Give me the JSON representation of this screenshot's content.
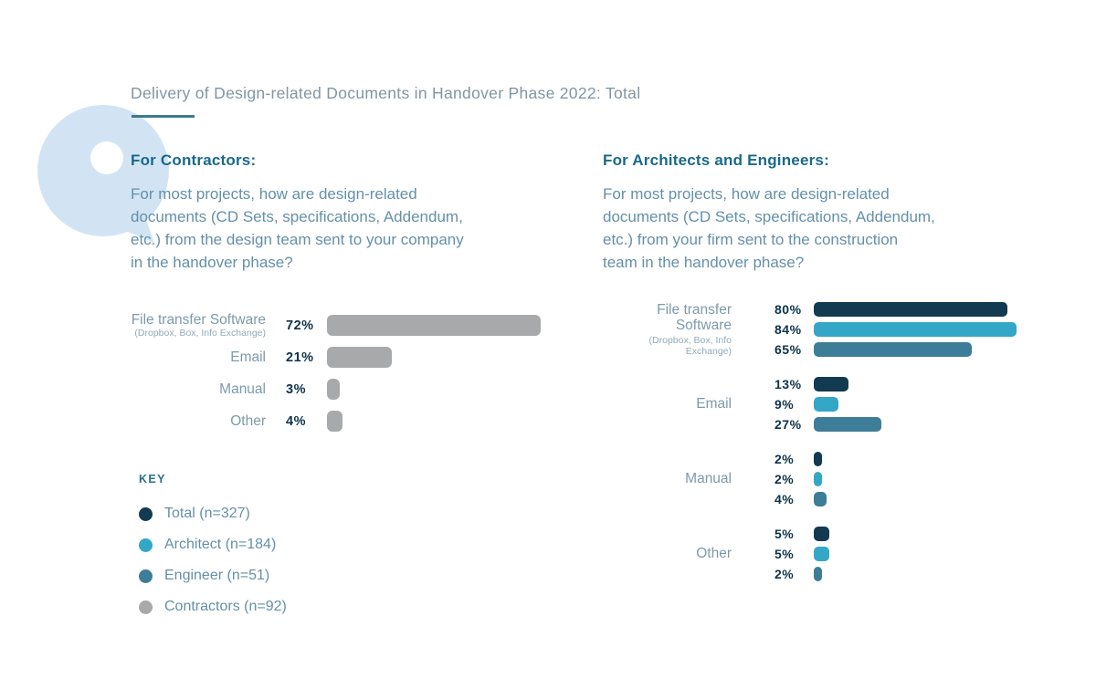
{
  "title": "Delivery of Design-related Documents in Handover Phase 2022: Total",
  "sections": [
    {
      "heading": "For Contractors:",
      "question": "For most projects, how are design-related\ndocuments (CD Sets, specifications, Addendum,\netc.)  from the design team sent to your company\nin the handover phase?"
    },
    {
      "heading": "For Architects and Engineers:",
      "question": "For most projects, how are design-related\ndocuments (CD Sets, specifications, Addendum,\netc.)  from your firm sent to the construction\nteam in the handover phase?"
    }
  ],
  "key": {
    "title": "KEY",
    "items": [
      {
        "label": "Total (n=327)",
        "color": "#123a50"
      },
      {
        "label": "Architect (n=184)",
        "color": "#34a7c6"
      },
      {
        "label": "Engineer (n=51)",
        "color": "#3e7d97"
      },
      {
        "label": "Contractors (n=92)",
        "color": "#a8a9ab"
      }
    ]
  },
  "chart_data": [
    {
      "type": "bar",
      "title": "For Contractors:",
      "orientation": "horizontal",
      "categories": [
        "File transfer Software",
        "Email",
        "Manual",
        "Other"
      ],
      "category_sublabels": [
        "(Dropbox, Box, Info Exchange)",
        "",
        "",
        ""
      ],
      "series": [
        {
          "name": "Contractors (n=92)",
          "color": "#a8a9ab",
          "values": [
            72,
            21,
            3,
            4
          ]
        }
      ],
      "value_format": "percent",
      "xlim": [
        0,
        100
      ],
      "grid": false,
      "legend_position": "bottom-left-key"
    },
    {
      "type": "bar",
      "title": "For Architects and Engineers:",
      "orientation": "horizontal",
      "categories": [
        "File transfer Software",
        "Email",
        "Manual",
        "Other"
      ],
      "category_sublabels": [
        "(Dropbox, Box, Info Exchange)",
        "",
        "",
        ""
      ],
      "series": [
        {
          "name": "Total (n=327)",
          "color": "#123a50",
          "values": [
            80,
            13,
            2,
            5
          ]
        },
        {
          "name": "Architect (n=184)",
          "color": "#34a7c6",
          "values": [
            84,
            9,
            2,
            5
          ]
        },
        {
          "name": "Engineer (n=51)",
          "color": "#3e7d97",
          "values": [
            65,
            27,
            4,
            2
          ]
        }
      ],
      "value_format": "percent",
      "xlim": [
        0,
        100
      ],
      "grid": false,
      "legend_position": "bottom-left-key"
    }
  ],
  "colors": {
    "accent_underline": "#3d7a8e",
    "title_text": "#8195a3",
    "heading_text": "#19698a",
    "body_text": "#6490a9",
    "value_text": "#0e3349",
    "bubble": "#d2e4f4"
  }
}
